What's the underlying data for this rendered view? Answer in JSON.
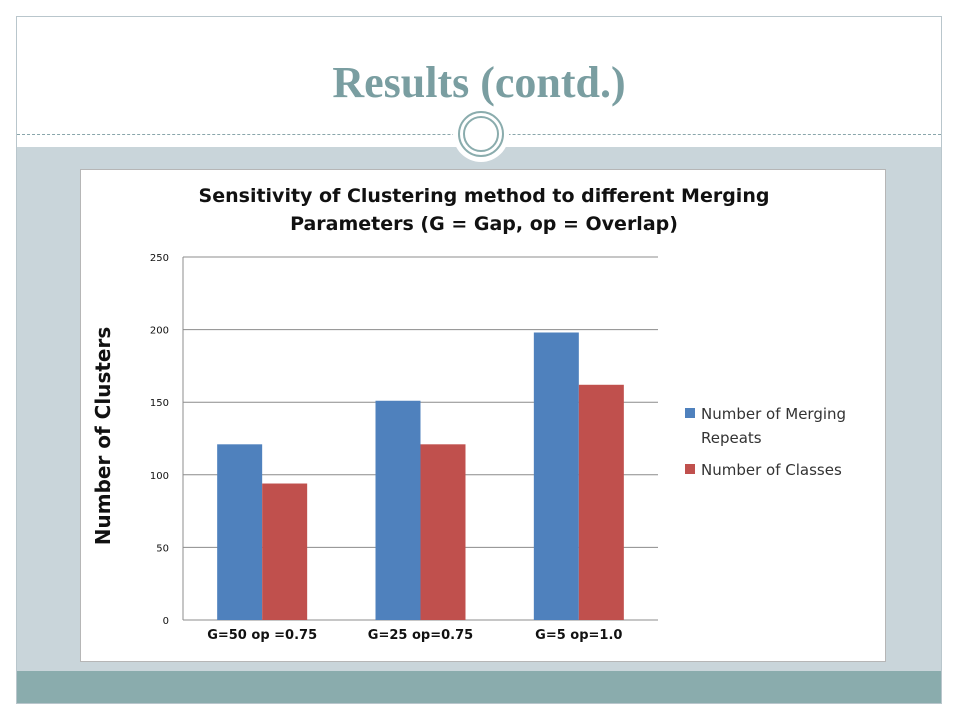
{
  "slide": {
    "title": "Results (contd.)",
    "colors": {
      "title": "#7a9ea1",
      "content_background": "#c9d5da",
      "footer_band": "#8aacad"
    }
  },
  "chart_data": {
    "type": "bar",
    "title_lines": [
      "Sensitivity of Clustering method to different Merging",
      "Parameters (G = Gap, op = Overlap)"
    ],
    "xlabel": "",
    "ylabel": "Number of Clusters",
    "categories": [
      "G=50 op =0.75",
      "G=25 op=0.75",
      "G=5  op=1.0"
    ],
    "series": [
      {
        "name": "Number of Merging Repeats",
        "color": "#4f81bd",
        "values": [
          121,
          151,
          198
        ]
      },
      {
        "name": "Number of Classes",
        "color": "#c0504d",
        "values": [
          94,
          121,
          162
        ]
      }
    ],
    "ylim": [
      0,
      250
    ],
    "yticks": [
      0,
      50,
      100,
      150,
      200,
      250
    ],
    "grid": true,
    "legend_position": "right"
  }
}
